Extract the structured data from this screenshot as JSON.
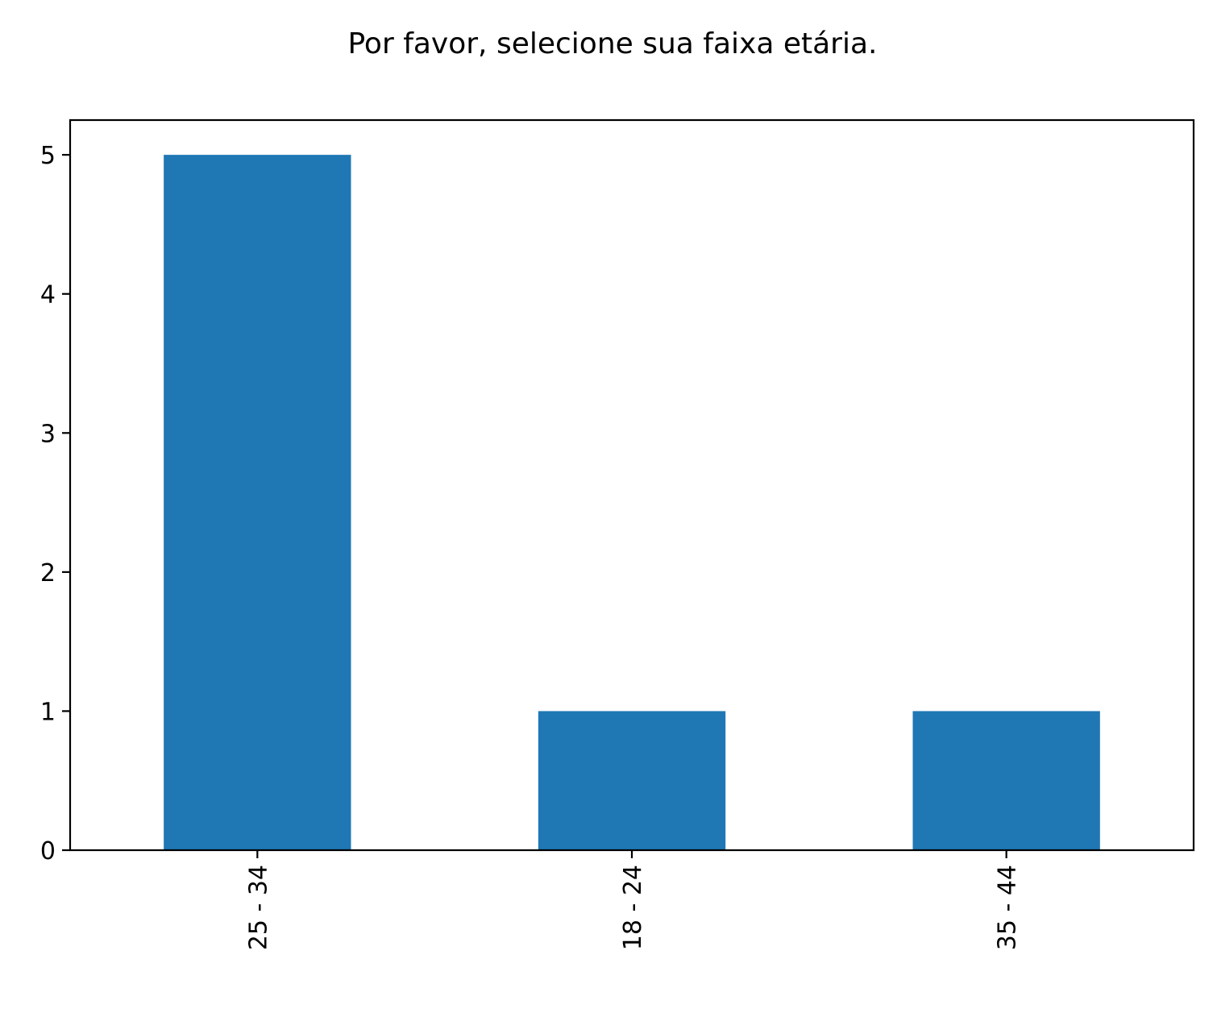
{
  "chart_data": {
    "type": "bar",
    "title": "Por favor, selecione sua faixa etária.",
    "categories": [
      "25 - 34",
      "18 - 24",
      "35 - 44"
    ],
    "values": [
      5,
      1,
      1
    ],
    "xlabel": "",
    "ylabel": "",
    "ylim": [
      0,
      5.25
    ],
    "yticks": [
      0,
      1,
      2,
      3,
      4,
      5
    ],
    "grid": false,
    "bar_color": "#1f77b4"
  }
}
